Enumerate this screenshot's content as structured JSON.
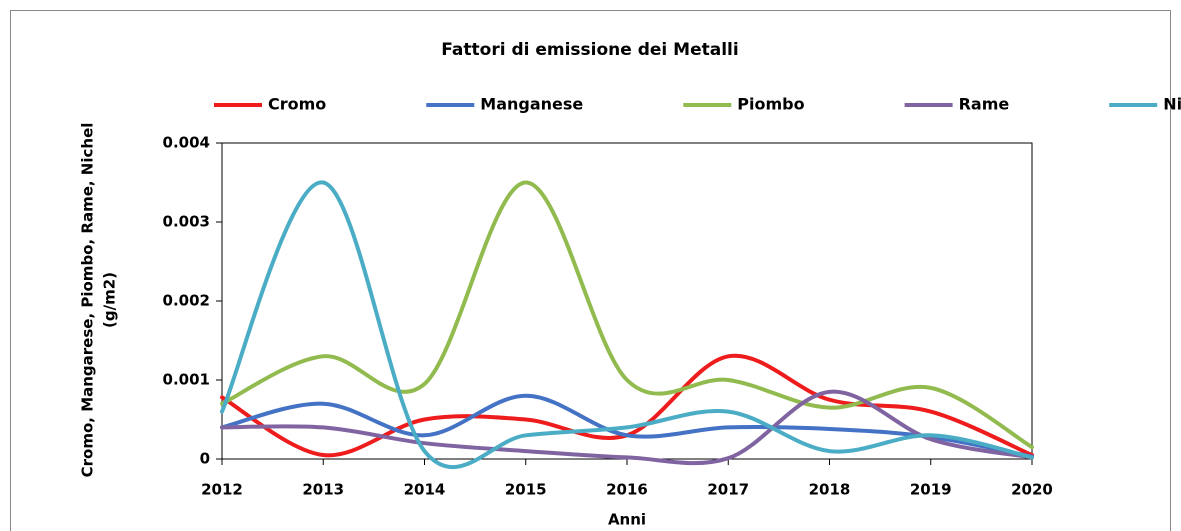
{
  "chart_data": {
    "type": "line",
    "title": "Fattori di emissione dei Metalli",
    "x_label": "Anni",
    "y_label": [
      "Cromo, Mangarese, Piombo, Rame, Nichel",
      "(g/m2)"
    ],
    "x": [
      2012,
      2013,
      2014,
      2015,
      2016,
      2017,
      2018,
      2019,
      2020
    ],
    "xlim": [
      2012,
      2020
    ],
    "xticks": [
      2012,
      2013,
      2014,
      2015,
      2016,
      2017,
      2018,
      2019,
      2020
    ],
    "ylim": [
      0,
      0.004
    ],
    "yticks": [
      0,
      0.001,
      0.002,
      0.003,
      0.004
    ],
    "smooth": true,
    "series": [
      {
        "name": "Cromo",
        "color": "#ee1c1c",
        "values": [
          0.00078,
          5e-05,
          0.0005,
          0.0005,
          0.0003,
          0.0013,
          0.00075,
          0.0006,
          5e-05
        ]
      },
      {
        "name": "Manganese",
        "color": "#4472c4",
        "values": [
          0.0004,
          0.0007,
          0.0003,
          0.0008,
          0.0003,
          0.0004,
          0.00038,
          0.00028,
          3e-05
        ]
      },
      {
        "name": "Piombo",
        "color": "#92bb4f",
        "values": [
          0.0007,
          0.0013,
          0.00095,
          0.0035,
          0.001,
          0.001,
          0.00065,
          0.0009,
          0.00015
        ]
      },
      {
        "name": "Rame",
        "color": "#8064a2",
        "values": [
          0.0004,
          0.0004,
          0.0002,
          0.0001,
          2e-05,
          1e-05,
          0.00085,
          0.00025,
          2e-05
        ]
      },
      {
        "name": "Nichel",
        "color": "#4bacc6",
        "values": [
          0.0006,
          0.0035,
          0.0001,
          0.0003,
          0.0004,
          0.0006,
          0.0001,
          0.0003,
          2e-05
        ]
      }
    ]
  }
}
